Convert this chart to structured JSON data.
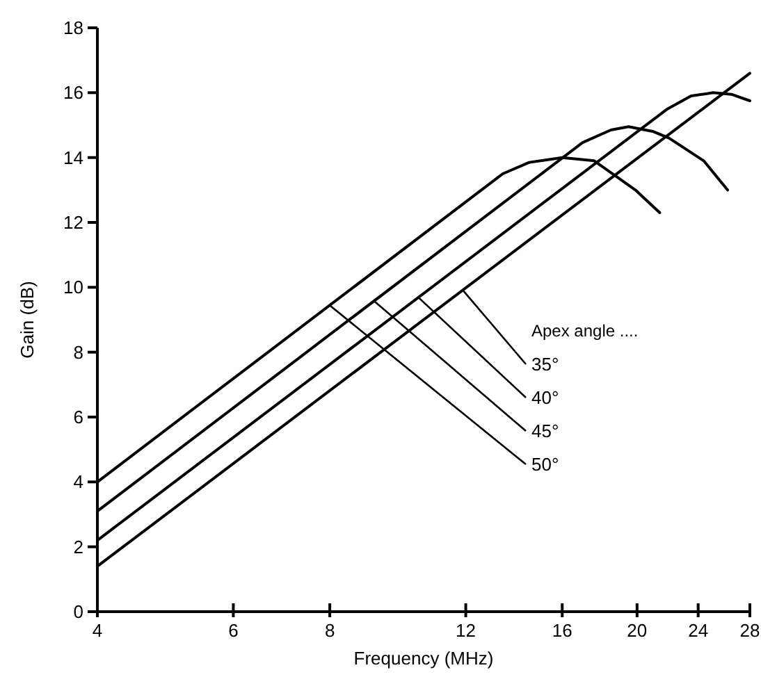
{
  "chart_data": {
    "type": "line",
    "xlabel": "Frequency (MHz)",
    "ylabel": "Gain (dB)",
    "legend_title": "Apex angle ....",
    "log": "x",
    "xlim": [
      4,
      28
    ],
    "xticks": [
      4,
      6,
      8,
      12,
      16,
      20,
      24,
      28
    ],
    "ylim": [
      0,
      18
    ],
    "yticks": [
      0,
      2,
      4,
      6,
      8,
      10,
      12,
      14,
      16,
      18
    ],
    "marker": "none",
    "line_style": "solid",
    "grid": false,
    "legend": "right",
    "series": [
      {
        "name": "35°",
        "color": "#000000",
        "x": [
          4,
          28
        ],
        "values": [
          1.4,
          16.6
        ]
      },
      {
        "name": "40°",
        "color": "#000000",
        "x": [
          4,
          21.9,
          23.5,
          25.1,
          26.5,
          28
        ],
        "values": [
          2.2,
          15.5,
          15.9,
          16.0,
          15.95,
          15.75
        ]
      },
      {
        "name": "45°",
        "color": "#000000",
        "x": [
          4,
          17,
          18.5,
          19.5,
          21,
          22,
          24.4,
          26.2
        ],
        "values": [
          3.1,
          14.46,
          14.85,
          14.95,
          14.8,
          14.6,
          13.9,
          13.0
        ]
      },
      {
        "name": "50°",
        "color": "#000000",
        "x": [
          4,
          13.4,
          14.5,
          16,
          17.6,
          19.9,
          21.4
        ],
        "values": [
          4,
          13.5,
          13.85,
          14.0,
          13.9,
          13.0,
          12.3
        ]
      }
    ]
  }
}
